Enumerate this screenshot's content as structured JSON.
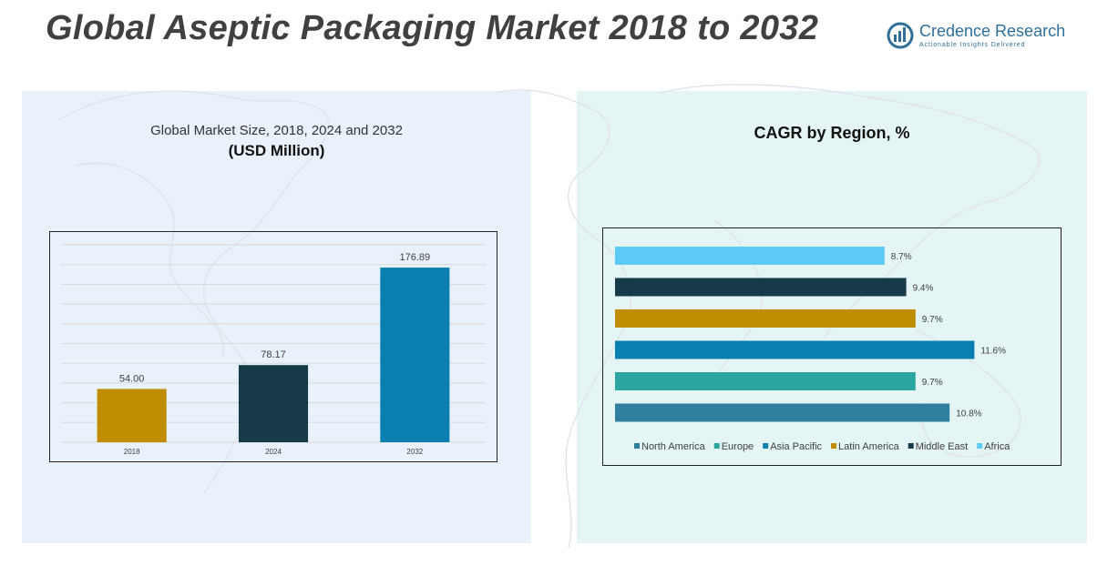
{
  "header": {
    "title": "Global Aseptic Packaging Market 2018 to 2032",
    "brand_name": "Credence Research",
    "brand_tagline": "Actionable Insights Delivered"
  },
  "left_panel": {
    "title_line1": "Global Market Size, 2018, 2024 and 2032",
    "title_line2": "(USD Million)"
  },
  "right_panel": {
    "title": "CAGR by Region, %"
  },
  "colors": {
    "brand": "#2f6f9a",
    "bar_2018": "#c08c00",
    "bar_2024": "#163a47",
    "bar_2032": "#0a80b0",
    "north_america": "#2e7fa0",
    "europe": "#2aa59f",
    "asia_pacific": "#0a80b0",
    "latin_america": "#c08c00",
    "middle_east": "#163a47",
    "africa": "#5ccbf5"
  },
  "chart_data": [
    {
      "type": "bar",
      "categories": [
        "2018",
        "2024",
        "2032"
      ],
      "values": [
        54.0,
        78.17,
        176.89
      ],
      "value_labels": [
        "54.00",
        "78.17",
        "176.89"
      ],
      "colors": [
        "#c08c00",
        "#163a47",
        "#0a80b0"
      ],
      "title": "Global Market Size, 2018, 2024 and 2032",
      "subtitle": "(USD Million)",
      "ylim": [
        0,
        200
      ],
      "grid": true
    },
    {
      "type": "bar",
      "orientation": "horizontal",
      "title": "CAGR by Region, %",
      "categories": [
        "North America",
        "Europe",
        "Asia Pacific",
        "Latin America",
        "Middle East",
        "Africa"
      ],
      "values": [
        10.8,
        9.7,
        11.6,
        9.7,
        9.4,
        8.7
      ],
      "value_labels": [
        "10.8%",
        "9.7%",
        "11.6%",
        "9.7%",
        "9.4%",
        "8.7%"
      ],
      "colors": [
        "#2e7fa0",
        "#2aa59f",
        "#0a80b0",
        "#c08c00",
        "#163a47",
        "#5ccbf5"
      ],
      "xlim": [
        0,
        13
      ],
      "legend": "bottom",
      "grid": false
    }
  ]
}
